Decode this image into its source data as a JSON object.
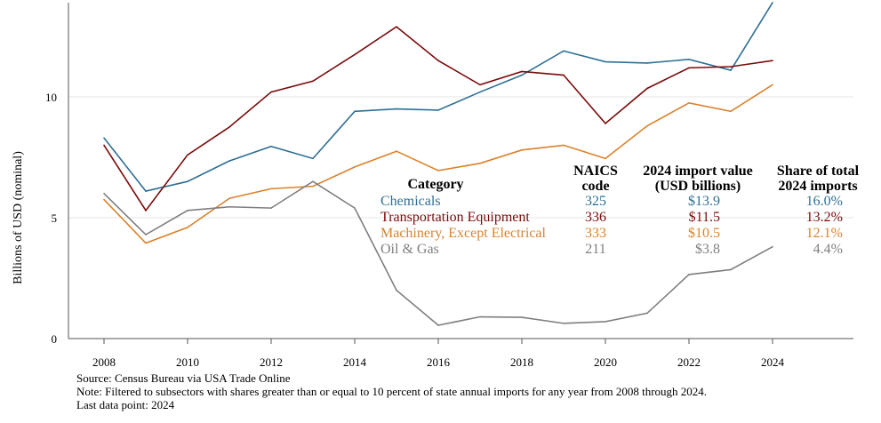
{
  "chart_data": {
    "type": "line",
    "title": "",
    "xlabel": "",
    "ylabel": "Billions of USD (nominal)",
    "xlim": [
      2007.5,
      2026
    ],
    "ylim": [
      0,
      14
    ],
    "x_ticks": [
      2008,
      2010,
      2012,
      2014,
      2016,
      2018,
      2020,
      2022,
      2024
    ],
    "y_ticks": [
      0,
      5,
      10
    ],
    "grid": "horizontal",
    "x": [
      2008,
      2009,
      2010,
      2011,
      2012,
      2013,
      2014,
      2015,
      2016,
      2017,
      2018,
      2019,
      2020,
      2021,
      2022,
      2023,
      2024
    ],
    "series": [
      {
        "name": "Chemicals",
        "color": "#2f6f94",
        "values": [
          8.3,
          6.1,
          6.5,
          7.35,
          7.95,
          7.45,
          9.4,
          9.5,
          9.45,
          10.2,
          10.9,
          11.9,
          11.45,
          11.4,
          11.55,
          11.1,
          13.9
        ]
      },
      {
        "name": "Transportation Equipment",
        "color": "#7a0b0b",
        "values": [
          8.0,
          5.3,
          7.6,
          8.75,
          10.2,
          10.65,
          11.75,
          12.9,
          11.5,
          10.5,
          11.05,
          10.9,
          8.9,
          10.35,
          11.2,
          11.25,
          11.5
        ]
      },
      {
        "name": "Machinery, Except Electrical",
        "color": "#d9822b",
        "values": [
          5.75,
          3.95,
          4.6,
          5.8,
          6.2,
          6.3,
          7.1,
          7.75,
          6.95,
          7.25,
          7.8,
          8.0,
          7.45,
          8.8,
          9.75,
          9.4,
          10.5
        ]
      },
      {
        "name": "Oil & Gas",
        "color": "#7f7f7f",
        "values": [
          6.0,
          4.3,
          5.3,
          5.45,
          5.4,
          6.5,
          5.4,
          2.0,
          0.55,
          0.9,
          0.88,
          0.63,
          0.7,
          1.05,
          2.65,
          2.85,
          3.8
        ]
      }
    ]
  },
  "table": {
    "headers": {
      "category": "Category",
      "naics": [
        "NAICS",
        "code"
      ],
      "value": [
        "2024 import value",
        "(USD billions)"
      ],
      "share": [
        "Share of total",
        "2024 imports"
      ]
    },
    "rows": [
      {
        "category": "Chemicals",
        "naics": "325",
        "value": "$13.9",
        "share": "16.0%",
        "color": "#2f6f94"
      },
      {
        "category": "Transportation Equipment",
        "naics": "336",
        "value": "$11.5",
        "share": "13.2%",
        "color": "#7a0b0b"
      },
      {
        "category": "Machinery, Except Electrical",
        "naics": "333",
        "value": "$10.5",
        "share": "12.1%",
        "color": "#d9822b"
      },
      {
        "category": "Oil & Gas",
        "naics": "211",
        "value": "$3.8",
        "share": "4.4%",
        "color": "#7f7f7f"
      }
    ]
  },
  "notes": [
    "Source: Census Bureau via USA Trade Online",
    "Note: Filtered to subsectors with shares greater than or equal to 10 percent of state annual imports for any year from 2008 through 2024.",
    "Last data point: 2024"
  ]
}
